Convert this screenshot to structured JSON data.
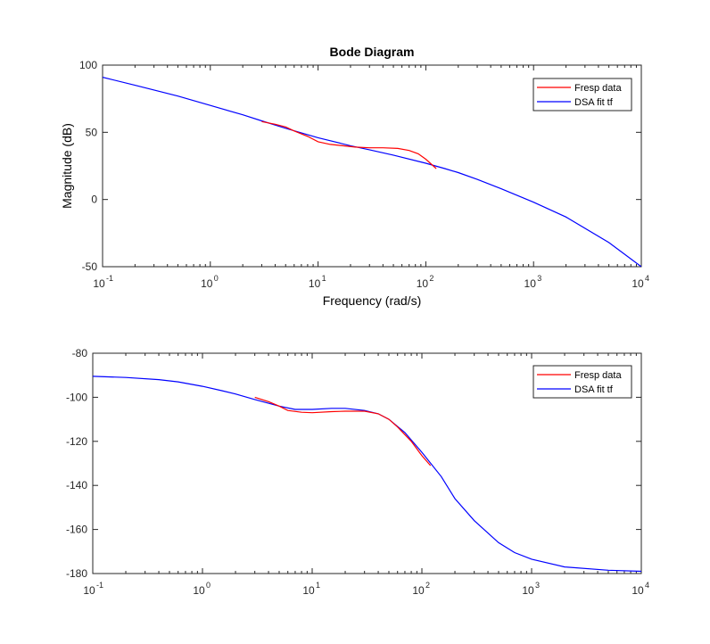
{
  "chart_data": [
    {
      "type": "line",
      "title": "Bode Diagram",
      "xlabel": "Frequency  (rad/s)",
      "ylabel": "Magnitude (dB)",
      "xscale": "log",
      "xlim": [
        0.1,
        10000
      ],
      "ylim": [
        -50,
        100
      ],
      "x_ticks": [
        {
          "base": "10",
          "exp": "-1"
        },
        {
          "base": "10",
          "exp": "0"
        },
        {
          "base": "10",
          "exp": "1"
        },
        {
          "base": "10",
          "exp": "2"
        },
        {
          "base": "10",
          "exp": "3"
        },
        {
          "base": "10",
          "exp": "4"
        }
      ],
      "y_ticks": [
        "-50",
        "0",
        "50",
        "100"
      ],
      "legend_position": "top-right",
      "grid": false,
      "series": [
        {
          "name": "Fresp data",
          "color": "#ff0000",
          "x": [
            3,
            4,
            5,
            6,
            8,
            10,
            13,
            17,
            22,
            30,
            40,
            55,
            70,
            85,
            100,
            110,
            125
          ],
          "values": [
            58,
            56,
            54,
            51,
            47,
            43,
            41,
            40,
            39,
            38.5,
            38.5,
            38,
            36.5,
            34,
            30,
            27,
            23
          ]
        },
        {
          "name": "DSA fit tf",
          "color": "#0000ff",
          "x": [
            0.1,
            0.2,
            0.5,
            1,
            2,
            3,
            5,
            10,
            20,
            30,
            50,
            100,
            150,
            200,
            300,
            500,
            1000,
            2000,
            5000,
            10000
          ],
          "values": [
            91,
            85,
            77,
            70,
            63,
            58.5,
            53,
            46,
            40,
            37,
            33,
            27,
            23,
            20,
            15,
            8,
            -2,
            -13,
            -32,
            -50
          ]
        }
      ]
    },
    {
      "type": "line",
      "title": "",
      "xlabel": "",
      "ylabel": "",
      "xscale": "log",
      "xlim": [
        0.1,
        10000
      ],
      "ylim": [
        -180,
        -80
      ],
      "x_ticks": [
        {
          "base": "10",
          "exp": "-1"
        },
        {
          "base": "10",
          "exp": "0"
        },
        {
          "base": "10",
          "exp": "1"
        },
        {
          "base": "10",
          "exp": "2"
        },
        {
          "base": "10",
          "exp": "3"
        },
        {
          "base": "10",
          "exp": "4"
        }
      ],
      "y_ticks": [
        "-180",
        "-160",
        "-140",
        "-120",
        "-100",
        "-80"
      ],
      "legend_position": "top-right",
      "grid": false,
      "series": [
        {
          "name": "Fresp data",
          "color": "#ff0000",
          "x": [
            3,
            4,
            5,
            6,
            8,
            10,
            15,
            20,
            30,
            40,
            50,
            60,
            80,
            100,
            120
          ],
          "values": [
            -100,
            -102,
            -104,
            -106,
            -106.8,
            -107,
            -106.5,
            -106.3,
            -106.3,
            -107.5,
            -110,
            -113.5,
            -120,
            -126.5,
            -131
          ]
        },
        {
          "name": "DSA fit tf",
          "color": "#0000ff",
          "x": [
            0.1,
            0.2,
            0.4,
            0.6,
            1,
            1.5,
            2,
            3,
            5,
            7,
            10,
            15,
            20,
            30,
            40,
            50,
            70,
            100,
            150,
            200,
            300,
            500,
            700,
            1000,
            2000,
            5000,
            10000
          ],
          "values": [
            -90.5,
            -91,
            -92,
            -93,
            -95,
            -97,
            -98.5,
            -101,
            -104,
            -105.5,
            -105.5,
            -105,
            -105,
            -106,
            -107.5,
            -110,
            -116,
            -125,
            -136,
            -146,
            -156,
            -166,
            -170.5,
            -173.5,
            -177,
            -178.5,
            -179
          ]
        }
      ]
    }
  ]
}
